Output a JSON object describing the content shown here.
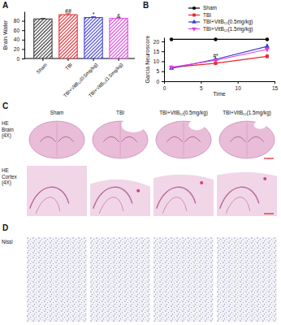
{
  "figure": {
    "panel_labels": [
      "A",
      "B",
      "C",
      "D"
    ],
    "image_columns": [
      "Sham",
      "TBI",
      "TBI+VitB₁₂(0.5mg/kg)",
      "TBI+VitB₁₂(1.5mg/kg)"
    ],
    "image_rows": [
      "HE Brain (4X)",
      "HE Cortex (4X)",
      "Nissl"
    ]
  },
  "chart_data": [
    {
      "type": "bar",
      "y_label": "Brain Water",
      "categories": [
        "Sham",
        "TBI",
        "TBI+VitB₁₂(0.5mg/kg)",
        "TBI+VitB₁₂(1.5mg/kg)"
      ],
      "values": [
        84,
        93,
        87,
        85
      ],
      "errors": [
        1,
        2,
        1.5,
        1
      ],
      "colors": [
        "#333333",
        "#e8262c",
        "#3b3bd6",
        "#e040e0"
      ],
      "ylim": [
        0,
        100
      ],
      "yticks": [
        0,
        20,
        40,
        60,
        80
      ],
      "annotations": [
        {
          "text": "##",
          "index": 1,
          "y": 96
        },
        {
          "text": "*",
          "index": 2,
          "y": 89
        },
        {
          "text": "&",
          "index": 3,
          "y": 87
        }
      ]
    },
    {
      "type": "line",
      "y_label": "Garcia Neuroscore",
      "x_label": "Time",
      "x": [
        1,
        7,
        14
      ],
      "series": [
        {
          "name": "Sham",
          "color": "#000000",
          "marker": "circle",
          "values": [
            21,
            21,
            21
          ],
          "errors": [
            0.3,
            0.3,
            0.3
          ]
        },
        {
          "name": "TBI",
          "color": "#e8262c",
          "marker": "square",
          "values": [
            7,
            9,
            12.5
          ],
          "errors": [
            0.6,
            0.8,
            1.2
          ]
        },
        {
          "name": "TBI+VitB₁₂(0.5mg/kg)",
          "color": "#3b3bd6",
          "marker": "triangle",
          "values": [
            6.5,
            11,
            17.5
          ],
          "errors": [
            0.6,
            0.9,
            1.3
          ]
        },
        {
          "name": "TBI+VitB₁₂(1.5mg/kg)",
          "color": "#e040e0",
          "marker": "triangle-down",
          "values": [
            7,
            10.5,
            16
          ],
          "errors": [
            0.6,
            0.8,
            1.2
          ]
        }
      ],
      "xlim": [
        0,
        15
      ],
      "xticks": [
        0,
        5,
        10,
        15
      ],
      "ylim": [
        0,
        22
      ],
      "yticks": [
        0,
        5,
        10,
        15,
        20
      ],
      "legend": "top",
      "annotations": [
        {
          "text": "#*",
          "x": 7,
          "y": 12
        }
      ]
    }
  ]
}
